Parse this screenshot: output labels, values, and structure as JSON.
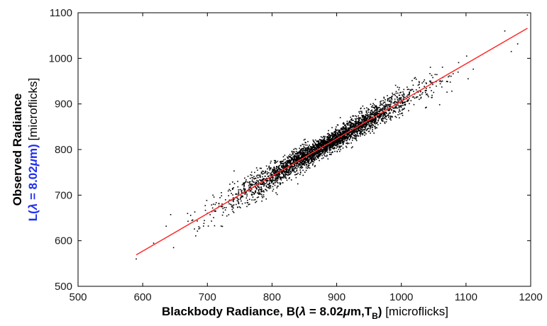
{
  "chart_data": {
    "type": "scatter",
    "xlim": [
      500,
      1200
    ],
    "ylim": [
      500,
      1100
    ],
    "x_ticks": [
      "500",
      "600",
      "700",
      "800",
      "900",
      "1000",
      "1100",
      "1200"
    ],
    "y_ticks": [
      "500",
      "600",
      "700",
      "800",
      "900",
      "1000",
      "1100"
    ],
    "xlabel": {
      "main": "Blackbody Radiance, B(",
      "lambda": "λ",
      "eq": " = 8.02",
      "mu": "μ",
      "m": "m,T",
      "sub": "B",
      "close": ")",
      "unit": " [microflicks]"
    },
    "ylabel": {
      "line1": "Observed Radiance",
      "l_prefix": "L(",
      "lambda": "λ",
      "eq": " = 8.02",
      "mu": "μ",
      "m_close": "m)",
      "unit": " [microflicks]"
    },
    "grid": false,
    "points": {
      "count": 3500,
      "color": "#000000",
      "x_center": 880,
      "x_spread": 70,
      "x_range": [
        590,
        1195
      ],
      "relation": "y ≈ 0.816·x + 88 with noise ~ 15",
      "noise_sd": 15,
      "outliers": [
        [
          590,
          560
        ],
        [
          1195,
          1095
        ],
        [
          1170,
          1015
        ],
        [
          1160,
          1060
        ]
      ]
    },
    "fit_line": {
      "color": "#ff2a2a",
      "x": [
        590,
        1195
      ],
      "y": [
        569,
        1066
      ]
    }
  }
}
